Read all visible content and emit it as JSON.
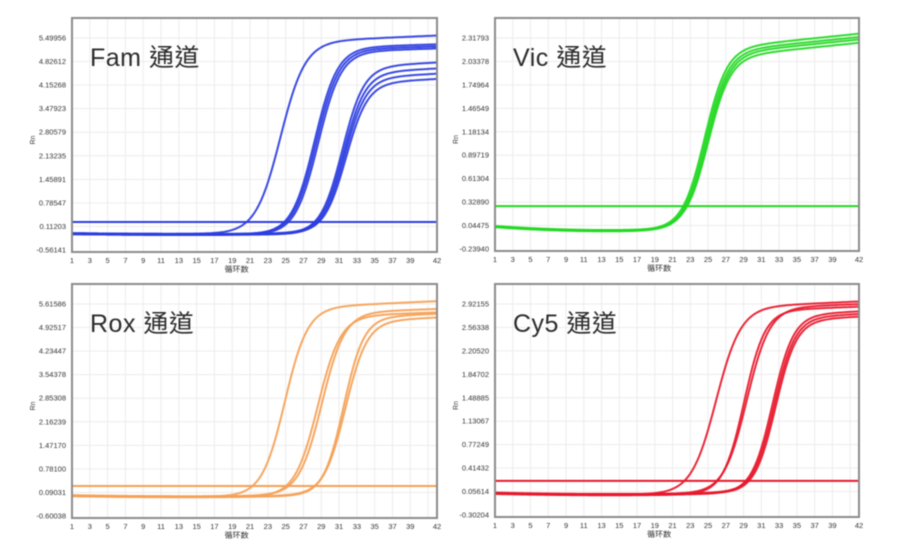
{
  "page": {
    "background": "#ffffff",
    "description": "qPCR amplification curves, four fluorescence channels"
  },
  "chart_data": {
    "type": "line",
    "layout": "2x2-grid",
    "x_range": [
      1,
      42
    ],
    "x_ticks": [
      1,
      3,
      5,
      7,
      9,
      11,
      13,
      15,
      17,
      19,
      21,
      23,
      25,
      27,
      29,
      31,
      33,
      35,
      37,
      39,
      42
    ],
    "grid": true,
    "panels": [
      {
        "id": "fam",
        "title": "Fam 通道",
        "xlabel": "循环数",
        "ylabel": "Rn",
        "color": "#2c3de0",
        "y_ticks": [
          "5.49956",
          "4.82612",
          "4.15268",
          "3.47923",
          "2.80579",
          "2.13235",
          "1.45891",
          "0.78547",
          "0.11203",
          "-0.56141"
        ],
        "threshold": 0.24,
        "baseline_sag": 0.02,
        "curves": [
          {
            "ct": 24.4,
            "slope": 0.72,
            "end_rn": 5.57,
            "drift": 0.011,
            "base": -0.08
          },
          {
            "ct": 28.25,
            "slope": 0.78,
            "end_rn": 5.32,
            "drift": 0.008,
            "base": -0.1
          },
          {
            "ct": 28.45,
            "slope": 0.78,
            "end_rn": 5.26,
            "drift": 0.008,
            "base": -0.09
          },
          {
            "ct": 28.65,
            "slope": 0.78,
            "end_rn": 5.2,
            "drift": 0.008,
            "base": -0.11
          },
          {
            "ct": 31.35,
            "slope": 0.82,
            "end_rn": 4.8,
            "drift": 0.013,
            "base": -0.1
          },
          {
            "ct": 31.5,
            "slope": 0.82,
            "end_rn": 4.63,
            "drift": 0.013,
            "base": -0.08
          },
          {
            "ct": 31.6,
            "slope": 0.82,
            "end_rn": 4.48,
            "drift": 0.013,
            "base": -0.11
          },
          {
            "ct": 31.75,
            "slope": 0.82,
            "end_rn": 4.33,
            "drift": 0.013,
            "base": -0.09
          }
        ]
      },
      {
        "id": "vic",
        "title": "Vic 通道",
        "xlabel": "循环数",
        "ylabel": "Rn",
        "color": "#22d822",
        "y_ticks": [
          "2.31793",
          "2.03378",
          "1.74964",
          "1.46549",
          "1.18134",
          "0.89719",
          "0.61304",
          "0.32890",
          "0.04475",
          "-0.23940"
        ],
        "threshold": 0.28,
        "baseline_sag": 0.05,
        "curves": [
          {
            "ct": 24.6,
            "slope": 0.8,
            "end_rn": 2.37,
            "drift": 0.011,
            "base": 0.035
          },
          {
            "ct": 24.75,
            "slope": 0.8,
            "end_rn": 2.33,
            "drift": 0.011,
            "base": 0.03
          },
          {
            "ct": 24.9,
            "slope": 0.8,
            "end_rn": 2.3,
            "drift": 0.011,
            "base": 0.025
          },
          {
            "ct": 25.0,
            "slope": 0.8,
            "end_rn": 2.26,
            "drift": 0.011,
            "base": 0.04
          }
        ]
      },
      {
        "id": "rox",
        "title": "Rox 通道",
        "xlabel": "循环数",
        "ylabel": "Rn",
        "color": "#f5a055",
        "y_ticks": [
          "5.61586",
          "4.92517",
          "4.23447",
          "3.54378",
          "2.85308",
          "2.16239",
          "1.47170",
          "0.78100",
          "0.09031",
          "-0.60038"
        ],
        "threshold": 0.28,
        "baseline_sag": 0.03,
        "curves": [
          {
            "ct": 24.9,
            "slope": 0.78,
            "end_rn": 5.7,
            "drift": 0.012,
            "base": -0.005
          },
          {
            "ct": 28.6,
            "slope": 0.78,
            "end_rn": 5.37,
            "drift": 0.009,
            "base": -0.02
          },
          {
            "ct": 29.05,
            "slope": 0.78,
            "end_rn": 5.47,
            "drift": 0.009,
            "base": 0.01
          },
          {
            "ct": 31.5,
            "slope": 0.88,
            "end_rn": 5.33,
            "drift": 0.012,
            "base": -0.015
          },
          {
            "ct": 31.7,
            "slope": 0.82,
            "end_rn": 5.22,
            "drift": 0.012,
            "base": 0.0
          }
        ]
      },
      {
        "id": "cy5",
        "title": "Cy5 通道",
        "xlabel": "循环数",
        "ylabel": "Rn",
        "color": "#e7182b",
        "y_ticks": [
          "2.92155",
          "2.56338",
          "2.20520",
          "1.84702",
          "1.48885",
          "1.13067",
          "0.77249",
          "0.41432",
          "0.05614",
          "-0.30204"
        ],
        "threshold": 0.22,
        "baseline_sag": 0.02,
        "curves": [
          {
            "ct": 25.9,
            "slope": 0.72,
            "end_rn": 2.96,
            "drift": 0.006,
            "base": 0.03
          },
          {
            "ct": 29.05,
            "slope": 0.85,
            "end_rn": 2.88,
            "drift": 0.005,
            "base": 0.02
          },
          {
            "ct": 29.35,
            "slope": 0.78,
            "end_rn": 2.92,
            "drift": 0.005,
            "base": 0.035
          },
          {
            "ct": 32.25,
            "slope": 0.85,
            "end_rn": 2.81,
            "drift": 0.007,
            "base": 0.025
          },
          {
            "ct": 32.45,
            "slope": 0.85,
            "end_rn": 2.77,
            "drift": 0.007,
            "base": 0.04
          },
          {
            "ct": 32.6,
            "slope": 0.85,
            "end_rn": 2.73,
            "drift": 0.007,
            "base": 0.03
          }
        ]
      }
    ]
  }
}
